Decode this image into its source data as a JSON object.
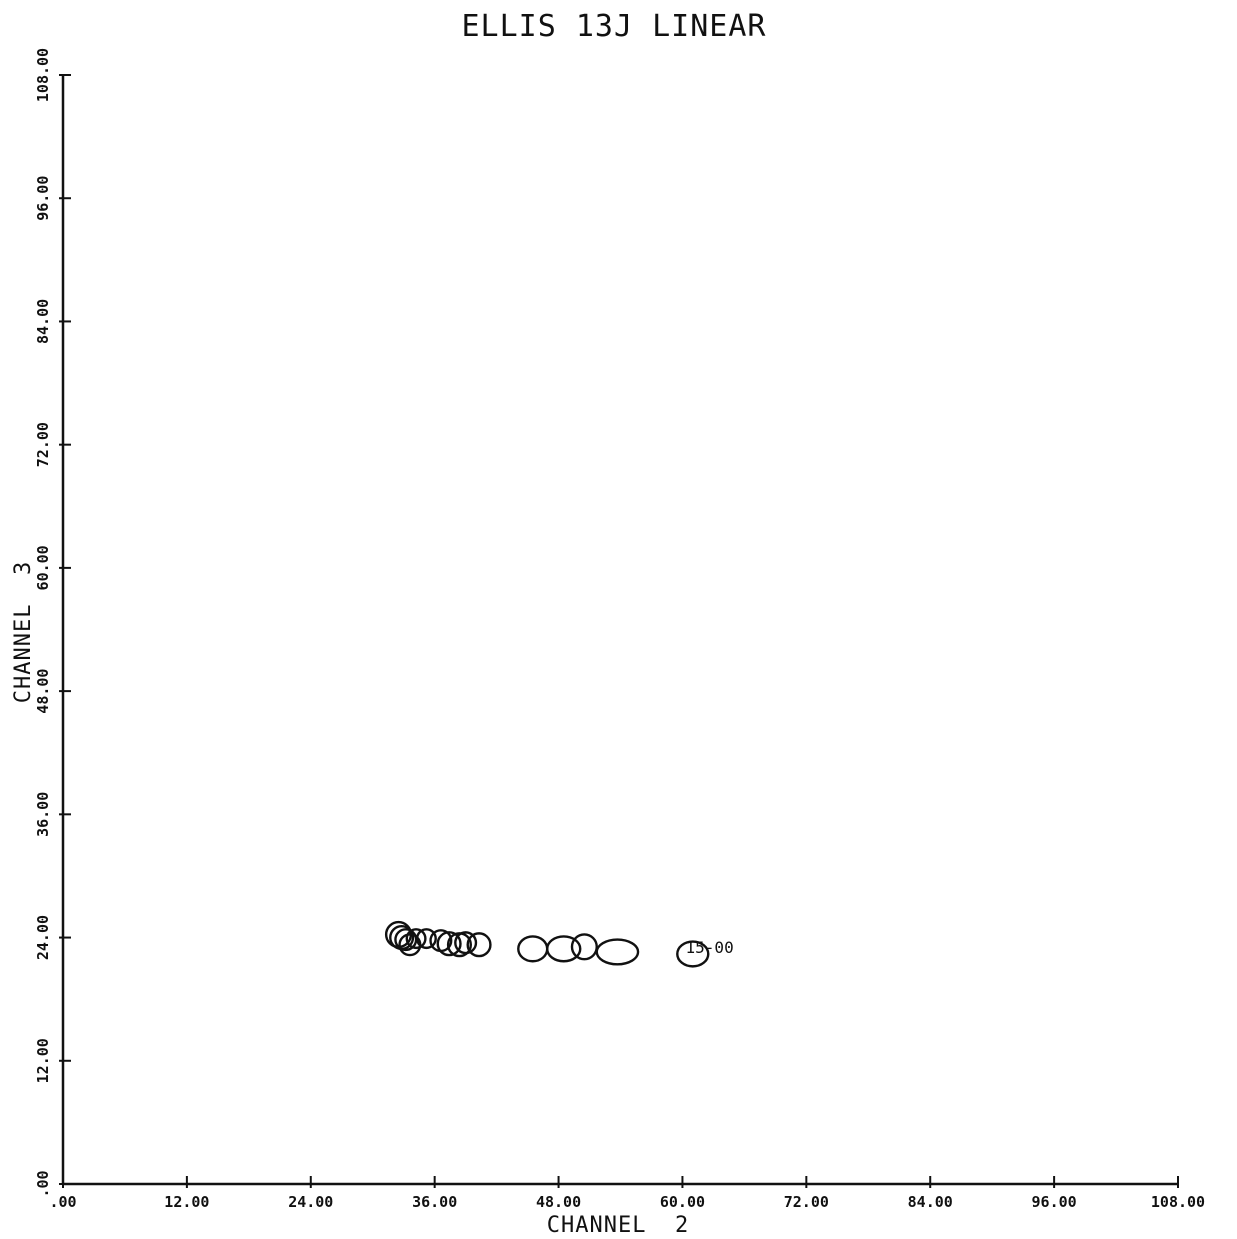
{
  "chart_data": {
    "type": "scatter",
    "title": "ELLIS 13J LINEAR",
    "xlabel": "CHANNEL  2",
    "ylabel": "CHANNEL  3",
    "xlim": [
      0,
      108
    ],
    "ylim": [
      0,
      108
    ],
    "x_ticks": [
      0,
      12,
      24,
      36,
      48,
      60,
      72,
      84,
      96,
      108
    ],
    "x_tick_labels": [
      ".00",
      "12.00",
      "24.00",
      "36.00",
      "48.00",
      "60.00",
      "72.00",
      "84.00",
      "96.00",
      "108.00"
    ],
    "y_ticks": [
      0,
      12,
      24,
      36,
      48,
      60,
      72,
      84,
      96,
      108
    ],
    "y_tick_labels": [
      ".00",
      "12.00",
      "24.00",
      "36.00",
      "48.00",
      "60.00",
      "72.00",
      "84.00",
      "96.00",
      "108.00"
    ],
    "grid": false,
    "points": [
      {
        "x": 32.5,
        "y": 24.3,
        "r": 1.2
      },
      {
        "x": 32.8,
        "y": 24.0,
        "r": 1.1
      },
      {
        "x": 33.2,
        "y": 23.8,
        "r": 1.0
      },
      {
        "x": 33.6,
        "y": 23.3,
        "r": 1.0
      },
      {
        "x": 34.2,
        "y": 23.9,
        "r": 0.9
      },
      {
        "x": 35.2,
        "y": 23.9,
        "r": 0.9
      },
      {
        "x": 36.6,
        "y": 23.7,
        "r": 1.0
      },
      {
        "x": 37.4,
        "y": 23.4,
        "r": 1.1
      },
      {
        "x": 38.4,
        "y": 23.3,
        "r": 1.1
      },
      {
        "x": 39.0,
        "y": 23.5,
        "r": 1.0
      },
      {
        "x": 40.3,
        "y": 23.3,
        "r": 1.1
      },
      {
        "x": 45.5,
        "y": 22.9,
        "r": 1.4
      },
      {
        "x": 48.5,
        "y": 22.9,
        "r": 1.6
      },
      {
        "x": 50.5,
        "y": 23.1,
        "r": 1.2
      },
      {
        "x": 53.7,
        "y": 22.6,
        "r": 2.0
      },
      {
        "x": 61.0,
        "y": 22.4,
        "r": 1.5
      }
    ],
    "annotations": [
      {
        "text": "15-00",
        "x": 60.3,
        "y": 23.1
      }
    ]
  }
}
